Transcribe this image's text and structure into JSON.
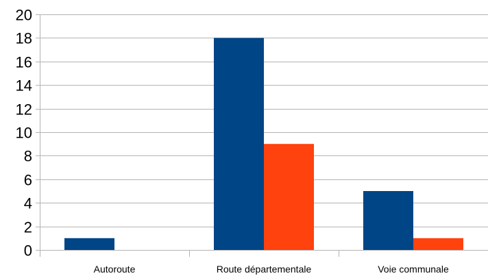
{
  "chart_data": {
    "type": "bar",
    "title": "",
    "xlabel": "",
    "ylabel": "",
    "categories": [
      "Autoroute",
      "Route départementale",
      "Voie communale"
    ],
    "series": [
      {
        "values": [
          1,
          18,
          5
        ],
        "color": "#004586"
      },
      {
        "values": [
          0,
          9,
          1
        ],
        "color": "#ff420e"
      }
    ],
    "ylim": [
      0,
      20
    ],
    "yticks": [
      0,
      2,
      4,
      6,
      8,
      10,
      12,
      14,
      16,
      18,
      20
    ],
    "grid": true,
    "legend": "none"
  }
}
